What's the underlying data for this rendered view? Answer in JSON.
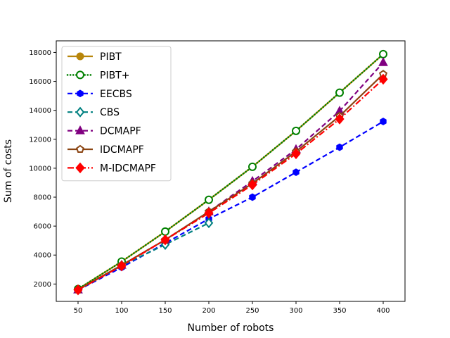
{
  "chart_data": {
    "type": "line",
    "xlabel": "Number of robots",
    "ylabel": "Sum of costs",
    "x": [
      50,
      100,
      150,
      200,
      250,
      300,
      350,
      400
    ],
    "xlim": [
      25,
      425
    ],
    "ylim": [
      800,
      18800
    ],
    "yticks": [
      2000,
      4000,
      6000,
      8000,
      10000,
      12000,
      14000,
      16000,
      18000
    ],
    "grid": false,
    "legend_position": "top-left",
    "series": [
      {
        "name": "PIBT",
        "color": "#b8860b",
        "linestyle": "solid",
        "marker": "circle-filled",
        "x": [
          50,
          100,
          150,
          200,
          250,
          300,
          350,
          400
        ],
        "values": [
          1650,
          3550,
          5620,
          7820,
          10100,
          12580,
          15220,
          17880
        ]
      },
      {
        "name": "PIBT+",
        "color": "#008000",
        "linestyle": "dotted",
        "marker": "circle-open",
        "x": [
          50,
          100,
          150,
          200,
          250,
          300,
          350,
          400
        ],
        "values": [
          1650,
          3550,
          5620,
          7820,
          10100,
          12580,
          15220,
          17880
        ]
      },
      {
        "name": "EECBS",
        "color": "#0000ff",
        "linestyle": "dashed",
        "marker": "hexagon-filled",
        "x": [
          50,
          100,
          150,
          200,
          250,
          300,
          350,
          400
        ],
        "values": [
          1580,
          3150,
          4820,
          6500,
          8000,
          9720,
          11450,
          13230
        ]
      },
      {
        "name": "CBS",
        "color": "#008080",
        "linestyle": "dashed",
        "marker": "diamond-open",
        "x": [
          50,
          100,
          150,
          200
        ],
        "values": [
          1600,
          3280,
          4720,
          6220
        ]
      },
      {
        "name": "DCMAPF",
        "color": "#800080",
        "linestyle": "dashed",
        "marker": "triangle-filled",
        "x": [
          50,
          100,
          150,
          200,
          250,
          300,
          350,
          400
        ],
        "values": [
          1600,
          3300,
          5050,
          7000,
          9100,
          11300,
          13950,
          17300
        ]
      },
      {
        "name": "IDCMAPF",
        "color": "#8b4513",
        "linestyle": "solid",
        "marker": "pentagon-open",
        "x": [
          50,
          100,
          150,
          200,
          250,
          300,
          350,
          400
        ],
        "values": [
          1600,
          3300,
          5050,
          7000,
          8950,
          11150,
          13600,
          16500
        ]
      },
      {
        "name": "M-IDCMAPF",
        "color": "#ff0000",
        "linestyle": "dashdot",
        "marker": "diamond-filled",
        "x": [
          50,
          100,
          150,
          200,
          250,
          300,
          350,
          400
        ],
        "values": [
          1600,
          3250,
          5050,
          6900,
          8850,
          11000,
          13400,
          16150
        ]
      }
    ]
  }
}
